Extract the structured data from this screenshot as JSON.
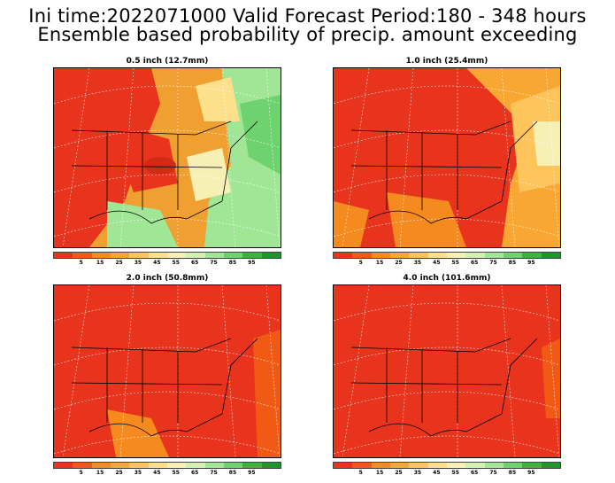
{
  "header": {
    "line1": "Ini time:2022071000  Valid Forecast Period:180 - 348 hours",
    "line2": "Ensemble based probability of precip. amount exceeding"
  },
  "panels": [
    {
      "title": "0.5 inch (12.7mm)",
      "scheme": "mixed"
    },
    {
      "title": "1.0 inch (25.4mm)",
      "scheme": "mostly-orange"
    },
    {
      "title": "2.0 inch (50.8mm)",
      "scheme": "red"
    },
    {
      "title": "4.0 inch (101.6mm)",
      "scheme": "red"
    }
  ],
  "colorbar": {
    "colors": [
      "#e8341c",
      "#f05a14",
      "#f58a1e",
      "#f8a832",
      "#fcc45a",
      "#fde08c",
      "#f7f0b4",
      "#d2f0b4",
      "#a0e696",
      "#6ed26e",
      "#3cb43c",
      "#1e9628"
    ],
    "labels": [
      "5",
      "15",
      "25",
      "35",
      "45",
      "55",
      "65",
      "75",
      "85",
      "95"
    ]
  }
}
